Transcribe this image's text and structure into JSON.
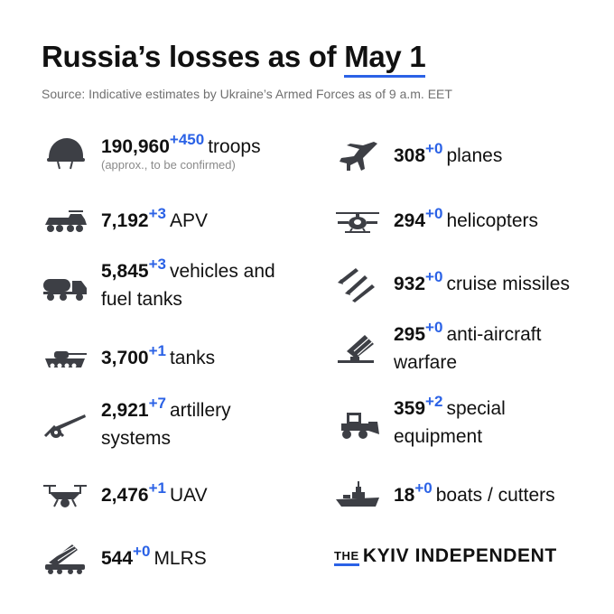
{
  "title": {
    "prefix": "Russia’s losses as of ",
    "date": "May 1"
  },
  "source": "Source: Indicative estimates by Ukraine’s Armed Forces as of 9 a.m. EET",
  "left": [
    {
      "number": "190,960",
      "delta": "+450",
      "label": "troops",
      "note": "(approx., to be confirmed)",
      "icon": "helmet-icon"
    },
    {
      "number": "7,192",
      "delta": "+3",
      "label": "APV",
      "icon": "apv-icon"
    },
    {
      "number": "5,845",
      "delta": "+3",
      "label": "vehicles and fuel tanks",
      "icon": "fuel-truck-icon"
    },
    {
      "number": "3,700",
      "delta": "+1",
      "label": "tanks",
      "icon": "tank-icon"
    },
    {
      "number": "2,921",
      "delta": "+7",
      "label": "artillery systems",
      "icon": "artillery-icon"
    },
    {
      "number": "2,476",
      "delta": "+1",
      "label": "UAV",
      "icon": "drone-icon"
    },
    {
      "number": "544",
      "delta": "+0",
      "label": "MLRS",
      "icon": "mlrs-icon"
    }
  ],
  "right": [
    {
      "number": "308",
      "delta": "+0",
      "label": "planes",
      "icon": "plane-icon"
    },
    {
      "number": "294",
      "delta": "+0",
      "label": "helicopters",
      "icon": "helicopter-icon"
    },
    {
      "number": "932",
      "delta": "+0",
      "label": "cruise missiles",
      "icon": "missile-icon"
    },
    {
      "number": "295",
      "delta": "+0",
      "label": "anti-aircraft warfare",
      "icon": "anti-aircraft-icon"
    },
    {
      "number": "359",
      "delta": "+2",
      "label": "special equipment",
      "icon": "bulldozer-icon"
    },
    {
      "number": "18",
      "delta": "+0",
      "label": "boats / cutters",
      "icon": "boat-icon"
    }
  ],
  "brand": {
    "the": "THE",
    "name": "KYIV INDEPENDENT"
  },
  "colors": {
    "accent": "#2b62e6",
    "icon": "#3d3f45",
    "text": "#111111",
    "muted": "#707070"
  }
}
